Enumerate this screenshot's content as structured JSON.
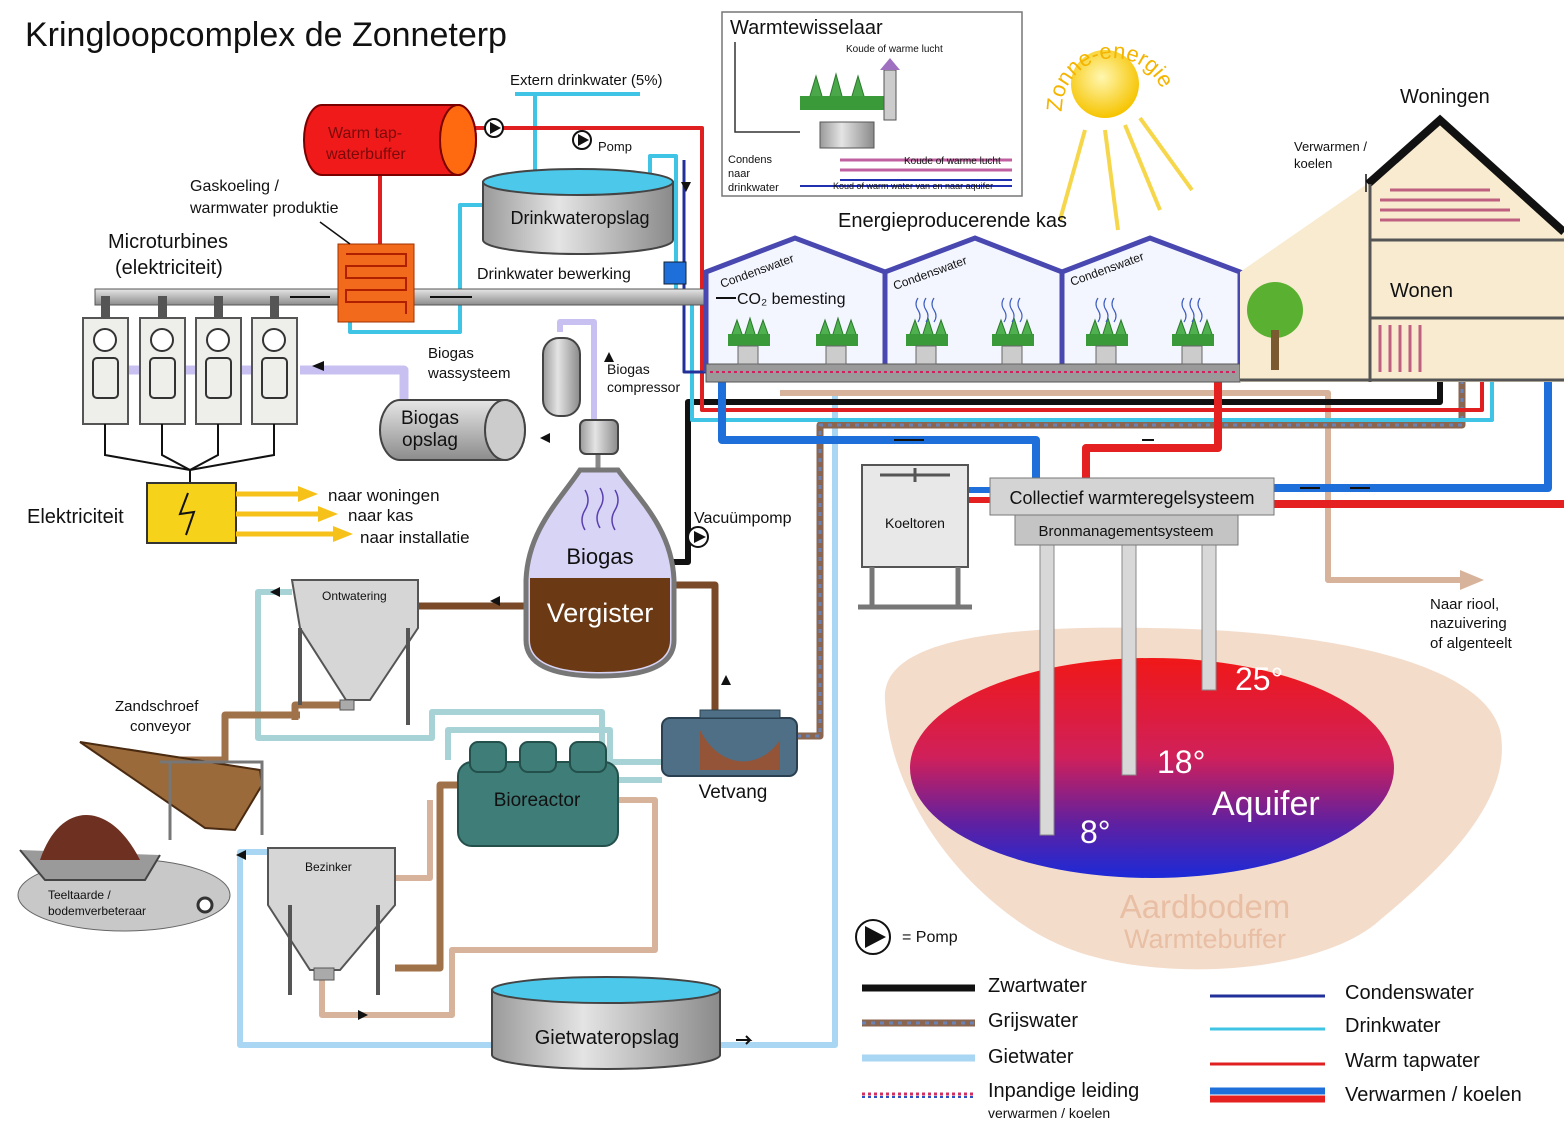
{
  "title": "Kringloopcomplex de Zonneterp",
  "external_water": "Extern drinkwater (5%)",
  "hot_water_buffer": [
    "Warm tap-",
    "waterbuffer"
  ],
  "pump_label": "Pomp",
  "gas_cooling": [
    "Gaskoeling /",
    "warmwater produktie"
  ],
  "microturbines": [
    "Microturbines",
    "(elektriciteit)"
  ],
  "drinking_water_storage": "Drinkwateropslag",
  "drinking_water_treatment": "Drinkwater bewerking",
  "biogas_washing": [
    "Biogas",
    "wassysteem"
  ],
  "biogas_compressor": [
    "Biogas",
    "compressor"
  ],
  "biogas_storage": [
    "Biogas",
    "opslag"
  ],
  "electricity": {
    "label": "Elektriciteit",
    "outputs": [
      "naar woningen",
      "naar kas",
      "naar installatie"
    ]
  },
  "digester": {
    "gas": "Biogas",
    "label": "Vergister"
  },
  "vacuum_pump": "Vacuümpomp",
  "dewatering": "Ontwatering",
  "sand_screw": [
    "Zandschroef",
    "conveyor"
  ],
  "soil": [
    "Teeltaarde /",
    "bodemverbeteraar"
  ],
  "settler": "Bezinker",
  "bioreactor": "Bioreactor",
  "grease_trap": "Vetvang",
  "irrigation_storage": "Gietwateropslag",
  "heat_exchanger": {
    "title": "Warmtewisselaar",
    "air_top": "Koude of warme lucht",
    "condensate": [
      "Condens",
      "naar",
      "drinkwater"
    ],
    "air_side": "Koude of warme lucht",
    "water": "Koud of warm water van en naar aquifer"
  },
  "solar": "Zonne-energie",
  "houses": {
    "title": "Woningen",
    "heating": [
      "Verwarmen /",
      "koelen"
    ],
    "living": "Wonen"
  },
  "greenhouse": {
    "title": "Energieproducerende kas",
    "condensate": [
      "Condenswater",
      "Condenswater",
      "Condenswater"
    ],
    "co2": "CO₂ bemesting"
  },
  "cooling_tower": "Koeltoren",
  "heat_control": "Collectief warmteregelsysteem",
  "source_management": "Bronmanagementsysteem",
  "sewer": [
    "Naar riool,",
    "nazuivering",
    "of algenteelt"
  ],
  "aquifer": {
    "temperatures": [
      "25°",
      "18°",
      "8°"
    ],
    "label": "Aquifer"
  },
  "soil_buffer": [
    "Aardbodem",
    "Warmtebuffer"
  ],
  "legend": {
    "pump": "= Pomp",
    "left": [
      "Zwartwater",
      "Grijswater",
      "Gietwater",
      "Inpandige leiding"
    ],
    "left_note": "verwarmen / koelen",
    "right": [
      "Condenswater",
      "Drinkwater",
      "Warm tapwater",
      "Verwarmen / koelen"
    ]
  }
}
